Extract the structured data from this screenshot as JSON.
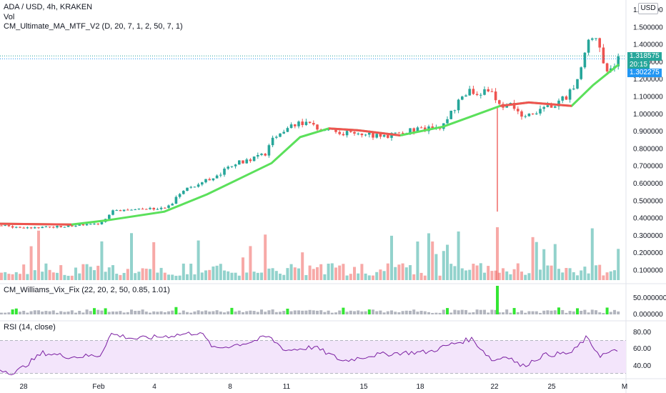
{
  "header": {
    "symbol_title": "ADA / USD, 4h, KRAKEN",
    "vol_label": "Vol",
    "ma_label": "CM_Ultimate_MA_MTF_V2 (D, 20, 7, 1, 2, 50, 7, 1)",
    "currency_button": "USD"
  },
  "price_axis": {
    "ticks": [
      "1.600000",
      "1.500000",
      "1.400000",
      "1.300000",
      "1.200000",
      "1.100000",
      "1.000000",
      "0.900000",
      "0.800000",
      "0.700000",
      "0.600000",
      "0.500000",
      "0.400000",
      "0.300000",
      "0.200000",
      "0.100000"
    ],
    "current_price": "1.318575",
    "countdown": "20:15",
    "ma_price": "1.302275"
  },
  "vix_panel": {
    "label": "CM_Williams_Vix_Fix (22, 20, 2, 50, 0.85, 1.01)",
    "ticks": [
      "50.000000",
      "0.000000"
    ]
  },
  "rsi_panel": {
    "label": "RSI (14, close)",
    "ticks": [
      "80.00",
      "60.00",
      "40.00"
    ]
  },
  "time_axis": {
    "labels": [
      "28",
      "Feb",
      "4",
      "8",
      "11",
      "15",
      "18",
      "22",
      "25",
      "M"
    ]
  },
  "colors": {
    "up": "#26a69a",
    "down": "#ef5350",
    "ma_up": "#5be05b",
    "ma_down": "#ef5350",
    "rsi": "#7b1fa2",
    "rsi_band": "#f3e5fb",
    "vix_spike": "#33e633"
  }
}
